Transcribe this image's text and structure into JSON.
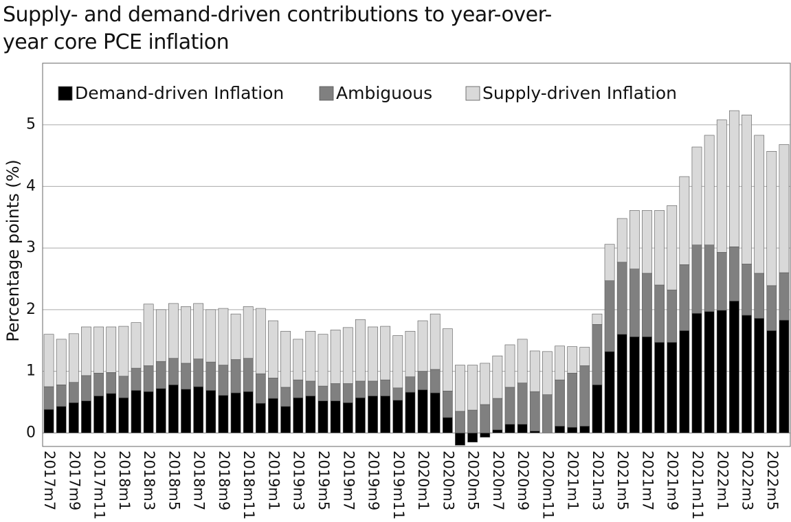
{
  "chart_data": {
    "type": "stacked-bar",
    "title": "Supply- and demand-driven contributions to year-over-year core PCE inflation",
    "y_label": "Percentage points (%)",
    "categories": [
      "2017m7",
      null,
      "2017m9",
      null,
      "2017m11",
      null,
      "2018m1",
      null,
      "2018m3",
      null,
      "2018m5",
      null,
      "2018m7",
      null,
      "2018m9",
      null,
      "2018m11",
      null,
      "2019m1",
      null,
      "2019m3",
      null,
      "2019m5",
      null,
      "2019m7",
      null,
      "2019m9",
      null,
      "2019m11",
      null,
      "2020m1",
      null,
      "2020m3",
      null,
      "2020m5",
      null,
      "2020m7",
      null,
      "2020m9",
      null,
      "2020m11",
      null,
      "2021m1",
      null,
      "2021m3",
      null,
      "2021m5",
      null,
      "2021m7",
      null,
      "2021m9",
      null,
      "2021m11",
      null,
      "2022m1",
      null,
      "2022m3",
      null,
      "2022m5",
      null
    ],
    "series": [
      {
        "name": "Demand-driven Inflation",
        "color": "#000000",
        "values": [
          0.38,
          0.43,
          0.49,
          0.52,
          0.6,
          0.64,
          0.57,
          0.69,
          0.67,
          0.72,
          0.78,
          0.71,
          0.75,
          0.69,
          0.61,
          0.65,
          0.67,
          0.48,
          0.56,
          0.43,
          0.57,
          0.6,
          0.52,
          0.52,
          0.49,
          0.57,
          0.6,
          0.6,
          0.53,
          0.66,
          0.7,
          0.65,
          0.25,
          -0.2,
          -0.15,
          -0.07,
          0.05,
          0.14,
          0.14,
          0.03,
          0.0,
          0.11,
          0.09,
          0.11,
          0.78,
          1.32,
          1.6,
          1.56,
          1.56,
          1.47,
          1.47,
          1.66,
          1.94,
          1.97,
          1.99,
          2.14,
          1.91,
          1.86,
          1.66,
          1.83
        ]
      },
      {
        "name": "Ambiguous",
        "color": "#808080",
        "values": [
          0.37,
          0.35,
          0.33,
          0.41,
          0.37,
          0.34,
          0.35,
          0.36,
          0.42,
          0.44,
          0.43,
          0.42,
          0.45,
          0.46,
          0.49,
          0.54,
          0.54,
          0.48,
          0.33,
          0.31,
          0.29,
          0.24,
          0.24,
          0.28,
          0.31,
          0.27,
          0.24,
          0.26,
          0.2,
          0.25,
          0.3,
          0.38,
          0.43,
          0.35,
          0.37,
          0.46,
          0.51,
          0.6,
          0.67,
          0.64,
          0.62,
          0.75,
          0.88,
          0.98,
          0.98,
          1.15,
          1.17,
          1.1,
          1.03,
          0.93,
          0.85,
          1.07,
          1.11,
          1.08,
          0.94,
          0.88,
          0.83,
          0.73,
          0.73,
          0.77
        ]
      },
      {
        "name": "Supply-driven Inflation",
        "color": "#d9d9d9",
        "values": [
          0.85,
          0.74,
          0.79,
          0.79,
          0.75,
          0.74,
          0.81,
          0.74,
          1.0,
          0.84,
          0.89,
          0.92,
          0.9,
          0.85,
          0.92,
          0.74,
          0.84,
          1.06,
          0.93,
          0.91,
          0.66,
          0.81,
          0.84,
          0.87,
          0.91,
          1.0,
          0.88,
          0.87,
          0.85,
          0.74,
          0.82,
          0.9,
          1.01,
          0.75,
          0.73,
          0.67,
          0.69,
          0.69,
          0.71,
          0.66,
          0.7,
          0.55,
          0.43,
          0.3,
          0.17,
          0.59,
          0.71,
          0.95,
          1.02,
          1.21,
          1.37,
          1.43,
          1.59,
          1.78,
          2.15,
          2.21,
          2.42,
          2.24,
          2.18,
          2.08
        ]
      }
    ],
    "ylim": [
      -0.22,
      6.0
    ],
    "yticks": [
      0,
      1,
      2,
      3,
      4,
      5
    ],
    "grid": true,
    "legend": "top"
  }
}
